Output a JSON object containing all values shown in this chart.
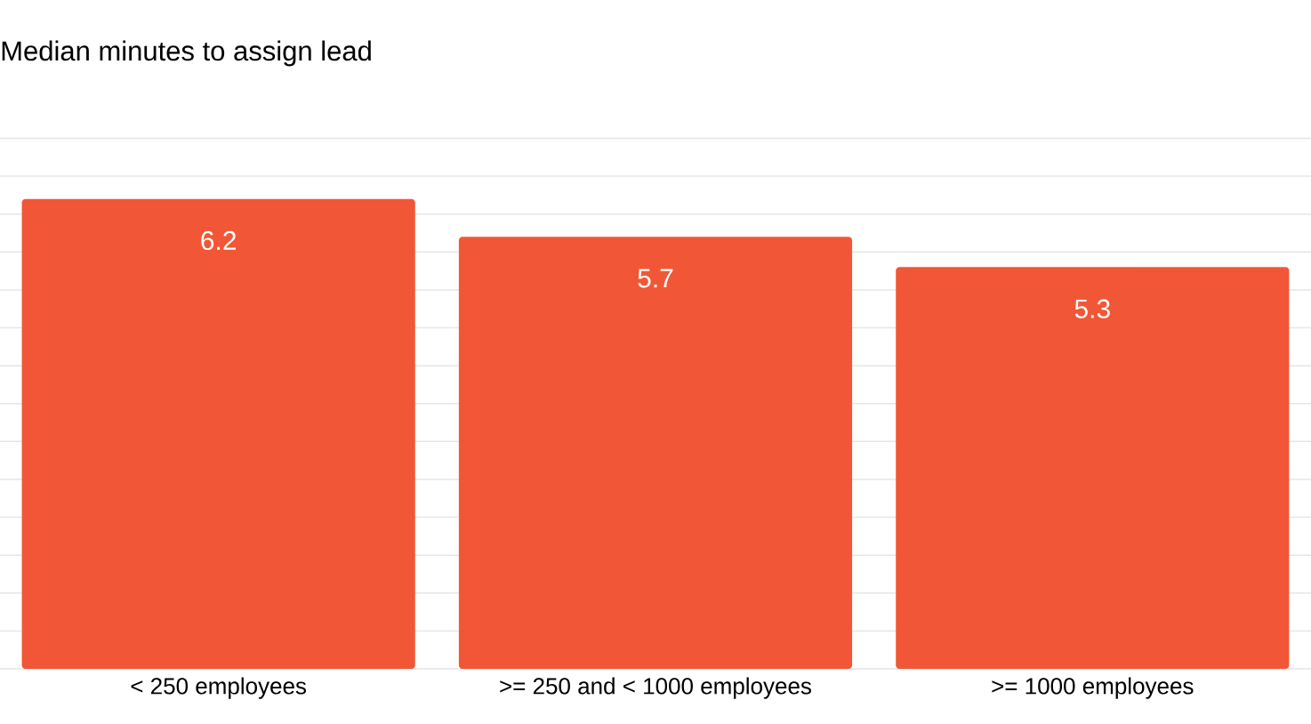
{
  "chart_data": {
    "type": "bar",
    "title": "Median minutes to assign lead",
    "categories": [
      "< 250 employees",
      ">= 250 and < 1000 employees",
      ">= 1000 employees"
    ],
    "values": [
      6.2,
      5.7,
      5.3
    ],
    "data_labels": true,
    "color": "#f15736",
    "grid": "y",
    "tick_labels": "x"
  }
}
